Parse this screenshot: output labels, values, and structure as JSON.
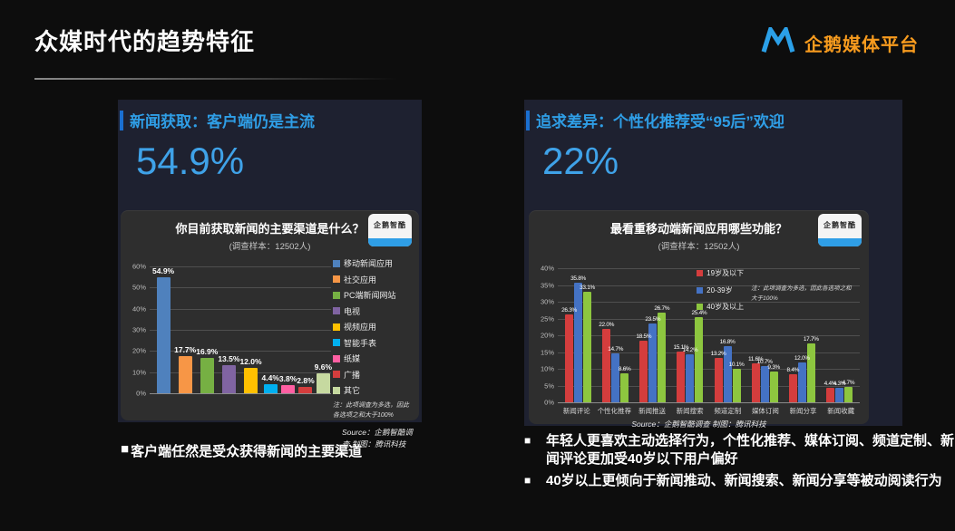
{
  "bullet": "■",
  "slide": {
    "title": "众媒时代的趋势特征",
    "brand": "企鹅媒体平台"
  },
  "left_panel": {
    "header": "新闻获取：客户端仍是主流",
    "stat": "54.9%",
    "caption": "客户端任然是受众获得新闻的主要渠道"
  },
  "right_panel": {
    "header": "追求差异：个性化推荐受“95后”欢迎",
    "stat": "22%",
    "captions": [
      "年轻人更喜欢主动选择行为，个性化推荐、媒体订阅、频道定制、新闻评论更加受40岁以下用户偏好",
      "40岁以上更倾向于新闻推动、新闻搜索、新闻分享等被动阅读行为"
    ]
  },
  "chart_data": [
    {
      "type": "bar",
      "title": "你目前获取新闻的主要渠道是什么？",
      "subtitle": "(调查样本：12502人)",
      "watermark": "企鹅智酷",
      "categories": [
        "移动新闻应用",
        "社交应用",
        "PC端新闻网站",
        "电视",
        "视频应用",
        "智能手表",
        "纸媒",
        "广播",
        "其它"
      ],
      "values": [
        54.9,
        17.7,
        16.9,
        13.5,
        12.0,
        4.4,
        3.8,
        2.8,
        9.6
      ],
      "colors": [
        "#4f81bd",
        "#f79646",
        "#76b043",
        "#8064a2",
        "#ffc000",
        "#00b0f0",
        "#ff5fa2",
        "#d43d3d",
        "#c6d9a0"
      ],
      "ylim": [
        0,
        60
      ],
      "ytick_step": 10,
      "grid": true,
      "legend_position": "right",
      "note": "注：此项调查为多选，因此各选项之和大于100%",
      "source": "Source：企鹅智酷调查  制图：腾讯科技"
    },
    {
      "type": "grouped-bar",
      "title": "最看重移动端新闻应用哪些功能？",
      "subtitle": "(调查样本：12502人)",
      "watermark": "企鹅智酷",
      "categories": [
        "新闻评论",
        "个性化推荐",
        "新闻推送",
        "新闻搜索",
        "频道定制",
        "媒体订阅",
        "新闻分享",
        "新闻收藏"
      ],
      "series": [
        {
          "name": "19岁及以下",
          "color": "#d43d3d",
          "values": [
            26.3,
            22.0,
            18.5,
            15.1,
            13.2,
            11.6,
            8.4,
            4.4
          ]
        },
        {
          "name": "20-39岁",
          "color": "#4472c4",
          "values": [
            35.8,
            14.7,
            23.5,
            14.2,
            16.8,
            10.7,
            12.0,
            4.3
          ]
        },
        {
          "name": "40岁及以上",
          "color": "#8dc63f",
          "values": [
            33.1,
            8.6,
            26.7,
            25.4,
            10.1,
            9.3,
            17.7,
            4.7
          ]
        }
      ],
      "ylim": [
        0,
        40
      ],
      "ytick_step": 5,
      "grid": true,
      "legend_position": "top-right-inside",
      "note": "注：此项调查为多选，因此各选项之和大于100%",
      "source": "Source：企鹅智酷调查  制图：腾讯科技"
    }
  ]
}
